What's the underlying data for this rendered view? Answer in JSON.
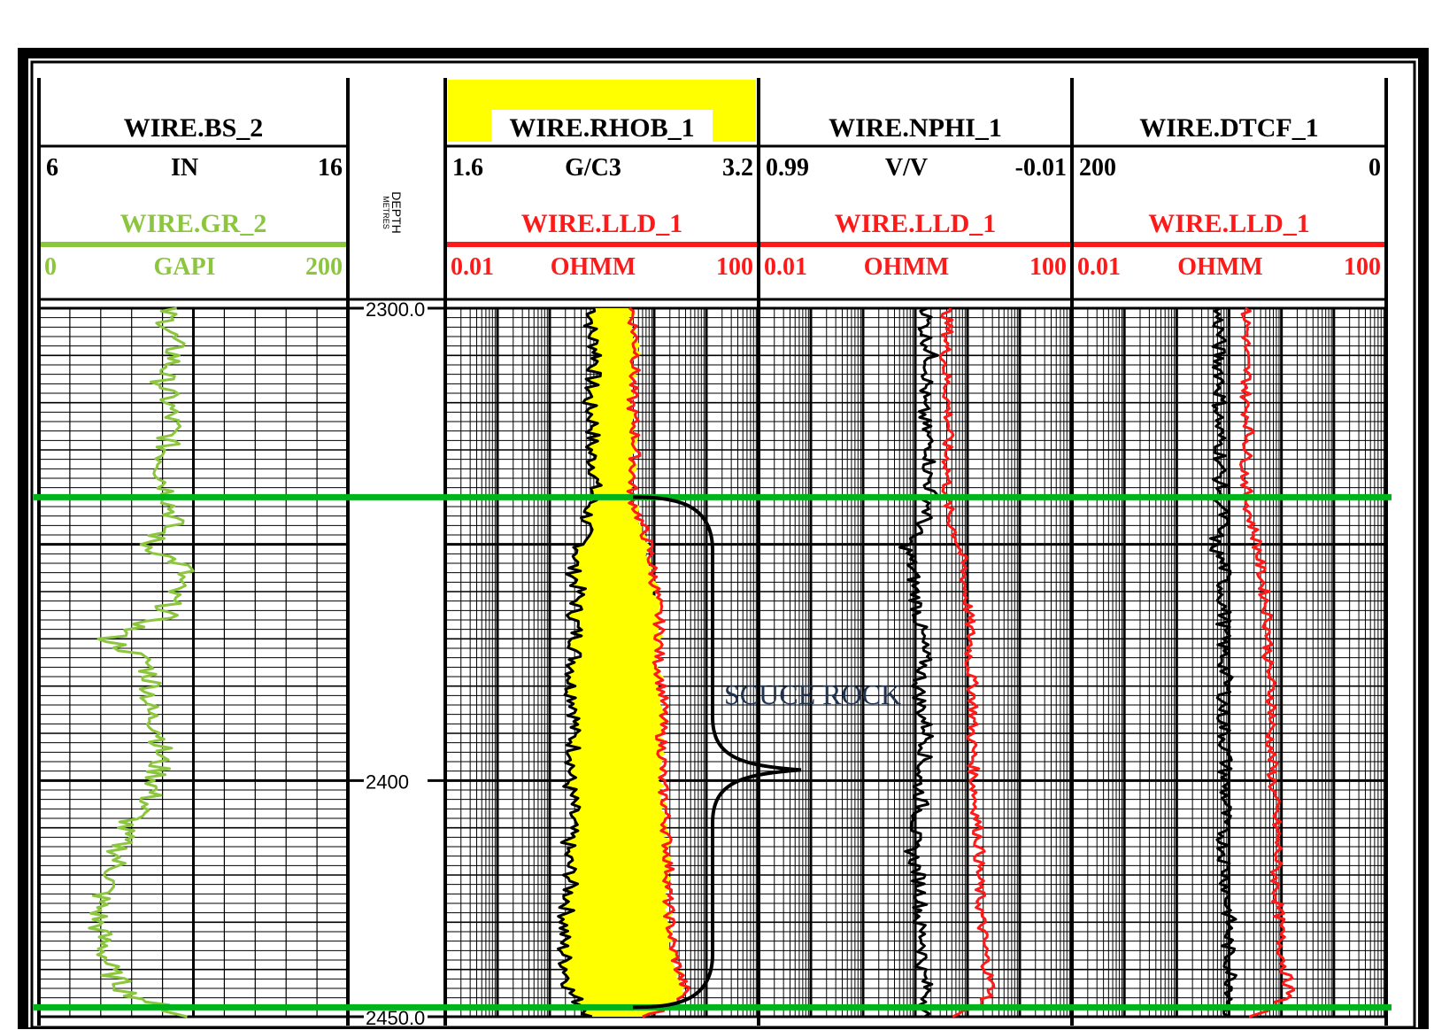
{
  "colors": {
    "frame": "#000000",
    "gr": "#8cc63f",
    "resistivity": "#ff1a1a",
    "log_black": "#000000",
    "fill": "#ffff00",
    "marker": "#00b31a",
    "title_highlight": "#ffff00"
  },
  "depth_track": {
    "title": "DEPTH",
    "unit": "METRES",
    "labels": [
      {
        "depth": 2300,
        "text": "2300.0"
      },
      {
        "depth": 2400,
        "text": "2400"
      },
      {
        "depth": 2450,
        "text": "2450.0"
      }
    ]
  },
  "tracks": [
    {
      "id": "bs",
      "title": "WIRE.BS_2",
      "highlight": false,
      "scale1": {
        "left": "6",
        "unit": "IN",
        "right": "16",
        "color": "#000000"
      },
      "curve2": {
        "name": "WIRE.GR_2",
        "left": "0",
        "unit": "GAPI",
        "right": "200",
        "color": "#8cc63f"
      },
      "grid": "linear"
    },
    {
      "id": "rhob",
      "title": "WIRE.RHOB_1",
      "highlight": true,
      "scale1": {
        "left": "1.6",
        "unit": "G/C3",
        "right": "3.2",
        "color": "#000000"
      },
      "curve2": {
        "name": "WIRE.LLD_1",
        "left": "0.01",
        "unit": "OHMM",
        "right": "100",
        "color": "#ff1a1a"
      },
      "grid": "log"
    },
    {
      "id": "nphi",
      "title": "WIRE.NPHI_1",
      "highlight": false,
      "scale1": {
        "left": "0.99",
        "unit": "V/V",
        "right": "-0.01",
        "color": "#000000"
      },
      "curve2": {
        "name": "WIRE.LLD_1",
        "left": "0.01",
        "unit": "OHMM",
        "right": "100",
        "color": "#ff1a1a"
      },
      "grid": "log"
    },
    {
      "id": "dtcf",
      "title": "WIRE.DTCF_1",
      "highlight": false,
      "scale1": {
        "left": "200",
        "unit": "",
        "right": "0",
        "color": "#000000"
      },
      "curve2": {
        "name": "WIRE.LLD_1",
        "left": "0.01",
        "unit": "OHMM",
        "right": "100",
        "color": "#ff1a1a"
      },
      "grid": "log"
    }
  ],
  "annotation": {
    "text": "SCUCE ROCK",
    "top_depth": 2340,
    "bottom_depth": 2448
  },
  "chart_data": {
    "type": "line",
    "title": "",
    "depth_range": [
      2300,
      2450
    ],
    "depth_unit": "METRES",
    "markers": [
      2340,
      2448
    ],
    "series": [
      {
        "name": "WIRE.GR_2",
        "track": "bs",
        "unit": "GAPI",
        "range": [
          0,
          200
        ],
        "depth": [
          2300,
          2305,
          2310,
          2315,
          2320,
          2325,
          2330,
          2335,
          2340,
          2345,
          2350,
          2355,
          2360,
          2365,
          2370,
          2375,
          2380,
          2385,
          2390,
          2395,
          2400,
          2405,
          2410,
          2415,
          2420,
          2425,
          2430,
          2435,
          2440,
          2445,
          2450
        ],
        "value": [
          82,
          85,
          88,
          80,
          84,
          86,
          82,
          80,
          85,
          88,
          70,
          95,
          86,
          82,
          45,
          70,
          74,
          70,
          80,
          78,
          76,
          70,
          55,
          52,
          48,
          40,
          38,
          42,
          45,
          58,
          96
        ]
      },
      {
        "name": "WIRE.RHOB_1",
        "track": "rhob",
        "unit": "G/C3",
        "range": [
          1.6,
          3.2
        ],
        "depth": [
          2300,
          2305,
          2310,
          2315,
          2320,
          2325,
          2330,
          2335,
          2340,
          2345,
          2350,
          2355,
          2360,
          2365,
          2370,
          2375,
          2380,
          2385,
          2390,
          2395,
          2400,
          2405,
          2410,
          2415,
          2420,
          2425,
          2430,
          2435,
          2440,
          2445,
          2450
        ],
        "value": [
          2.36,
          2.34,
          2.38,
          2.35,
          2.33,
          2.36,
          2.34,
          2.37,
          2.35,
          2.32,
          2.3,
          2.25,
          2.28,
          2.26,
          2.27,
          2.26,
          2.24,
          2.27,
          2.25,
          2.26,
          2.23,
          2.25,
          2.24,
          2.22,
          2.24,
          2.23,
          2.21,
          2.2,
          2.22,
          2.24,
          2.35
        ]
      },
      {
        "name": "WIRE.LLD_1",
        "track": "rhob",
        "unit": "OHMM",
        "range": [
          0.01,
          100
        ],
        "depth": [
          2300,
          2305,
          2310,
          2315,
          2320,
          2325,
          2330,
          2335,
          2340,
          2345,
          2350,
          2355,
          2360,
          2365,
          2370,
          2375,
          2380,
          2385,
          2390,
          2395,
          2400,
          2405,
          2410,
          2415,
          2420,
          2425,
          2430,
          2435,
          2440,
          2445,
          2450
        ],
        "value": [
          2.4,
          2.6,
          2.8,
          2.5,
          2.4,
          2.6,
          2.7,
          2.5,
          2.4,
          3.1,
          3.9,
          4.4,
          4.9,
          5.3,
          5.5,
          5.2,
          5.8,
          6.1,
          5.7,
          6.0,
          5.8,
          6.4,
          6.6,
          6.9,
          7.2,
          6.9,
          7.4,
          7.9,
          9.5,
          11.8,
          3.3
        ]
      },
      {
        "name": "WIRE.NPHI_1",
        "track": "nphi",
        "unit": "V/V",
        "range": [
          0.99,
          -0.01
        ],
        "depth": [
          2300,
          2305,
          2310,
          2315,
          2320,
          2325,
          2330,
          2335,
          2340,
          2345,
          2350,
          2355,
          2360,
          2365,
          2370,
          2375,
          2380,
          2385,
          2390,
          2395,
          2400,
          2405,
          2410,
          2415,
          2420,
          2425,
          2430,
          2435,
          2440,
          2445,
          2450
        ],
        "value": [
          0.45,
          0.46,
          0.44,
          0.45,
          0.47,
          0.46,
          0.44,
          0.45,
          0.44,
          0.46,
          0.52,
          0.5,
          0.49,
          0.48,
          0.47,
          0.46,
          0.48,
          0.47,
          0.45,
          0.46,
          0.48,
          0.47,
          0.49,
          0.5,
          0.48,
          0.47,
          0.48,
          0.46,
          0.47,
          0.45,
          0.46
        ]
      },
      {
        "name": "WIRE.LLD_1",
        "track": "nphi",
        "unit": "OHMM",
        "range": [
          0.01,
          100
        ],
        "depth": [
          2300,
          2305,
          2310,
          2315,
          2320,
          2325,
          2330,
          2335,
          2340,
          2345,
          2350,
          2355,
          2360,
          2365,
          2370,
          2375,
          2380,
          2385,
          2390,
          2395,
          2400,
          2405,
          2410,
          2415,
          2420,
          2425,
          2430,
          2435,
          2440,
          2445,
          2450
        ],
        "value": [
          2.5,
          2.6,
          2.4,
          2.5,
          2.6,
          2.7,
          2.5,
          2.6,
          2.5,
          2.8,
          3.6,
          4.1,
          4.4,
          4.8,
          5.1,
          4.9,
          5.4,
          5.6,
          5.3,
          5.5,
          5.6,
          5.9,
          6.3,
          6.6,
          6.4,
          6.7,
          7.0,
          7.6,
          8.3,
          9.6,
          3.0
        ]
      },
      {
        "name": "WIRE.DTCF_1",
        "track": "dtcf",
        "unit": "",
        "range": [
          200,
          0
        ],
        "depth": [
          2300,
          2305,
          2310,
          2315,
          2320,
          2325,
          2330,
          2335,
          2340,
          2345,
          2350,
          2355,
          2360,
          2365,
          2370,
          2375,
          2380,
          2385,
          2390,
          2395,
          2400,
          2405,
          2410,
          2415,
          2420,
          2425,
          2430,
          2435,
          2440,
          2445,
          2450
        ],
        "value": [
          108,
          106,
          107,
          105,
          106,
          107,
          105,
          106,
          105,
          104,
          110,
          103,
          104,
          103,
          104,
          103,
          102,
          104,
          103,
          102,
          103,
          102,
          104,
          103,
          102,
          101,
          100,
          101,
          99,
          98,
          100
        ]
      },
      {
        "name": "WIRE.LLD_1",
        "track": "dtcf",
        "unit": "OHMM",
        "range": [
          0.01,
          100
        ],
        "depth": [
          2300,
          2305,
          2310,
          2315,
          2320,
          2325,
          2330,
          2335,
          2340,
          2345,
          2350,
          2355,
          2360,
          2365,
          2370,
          2375,
          2380,
          2385,
          2390,
          2395,
          2400,
          2405,
          2410,
          2415,
          2420,
          2425,
          2430,
          2435,
          2440,
          2445,
          2450
        ],
        "value": [
          1.6,
          1.7,
          1.6,
          1.7,
          1.6,
          1.8,
          1.7,
          1.6,
          1.7,
          1.9,
          2.3,
          2.5,
          2.8,
          3.1,
          3.2,
          3.1,
          3.4,
          3.6,
          3.3,
          3.5,
          3.6,
          3.8,
          4.0,
          4.2,
          3.9,
          4.1,
          4.4,
          4.6,
          5.2,
          5.9,
          1.8
        ]
      }
    ]
  }
}
